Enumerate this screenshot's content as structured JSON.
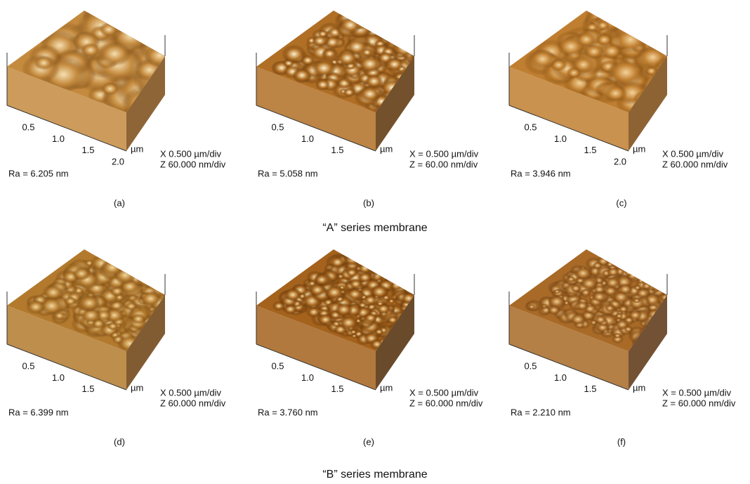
{
  "panels": [
    {
      "label": "(a)",
      "ra": "Ra = 6.205 nm",
      "ticks": [
        "0.5",
        "1.0",
        "1.5",
        "2.0"
      ],
      "unit": "µm",
      "scale": [
        "X  0.500 µm/div",
        "Z  60.000 nm/div"
      ]
    },
    {
      "label": "(b)",
      "ra": "Ra = 5.058 nm",
      "ticks": [
        "0.5",
        "1.0",
        "1.5"
      ],
      "unit": "µm",
      "scale": [
        "X = 0.500 µm/div",
        "Z = 60.00 nm/div"
      ]
    },
    {
      "label": "(c)",
      "ra": "Ra = 3.946 nm",
      "ticks": [
        "0.5",
        "1.0",
        "1.5",
        "2.0"
      ],
      "unit": "µm",
      "scale": [
        "X 0.500 µm/div",
        "Z 60.000 nm/div"
      ]
    },
    {
      "label": "(d)",
      "ra": "Ra = 6.399 nm",
      "ticks": [
        "0.5",
        "1.0",
        "1.5"
      ],
      "unit": "µm",
      "scale": [
        "X  0.500 µm/div",
        "Z  60.000 nm/div"
      ]
    },
    {
      "label": "(e)",
      "ra": "Ra = 3.760 nm",
      "ticks": [
        "0.5",
        "1.0",
        "1.5"
      ],
      "unit": "µm",
      "scale": [
        "X = 0.500 µm/div",
        "Z = 60.000 nm/div"
      ]
    },
    {
      "label": "(f)",
      "ra": "Ra = 2.210 nm",
      "ticks": [
        "0.5",
        "1.0",
        "1.5"
      ],
      "unit": "µm",
      "scale": [
        "X = 0.500 µm/div",
        "Z = 60.000 nm/div"
      ]
    }
  ],
  "captions": [
    "“A” series membrane",
    "“B” series membrane"
  ]
}
